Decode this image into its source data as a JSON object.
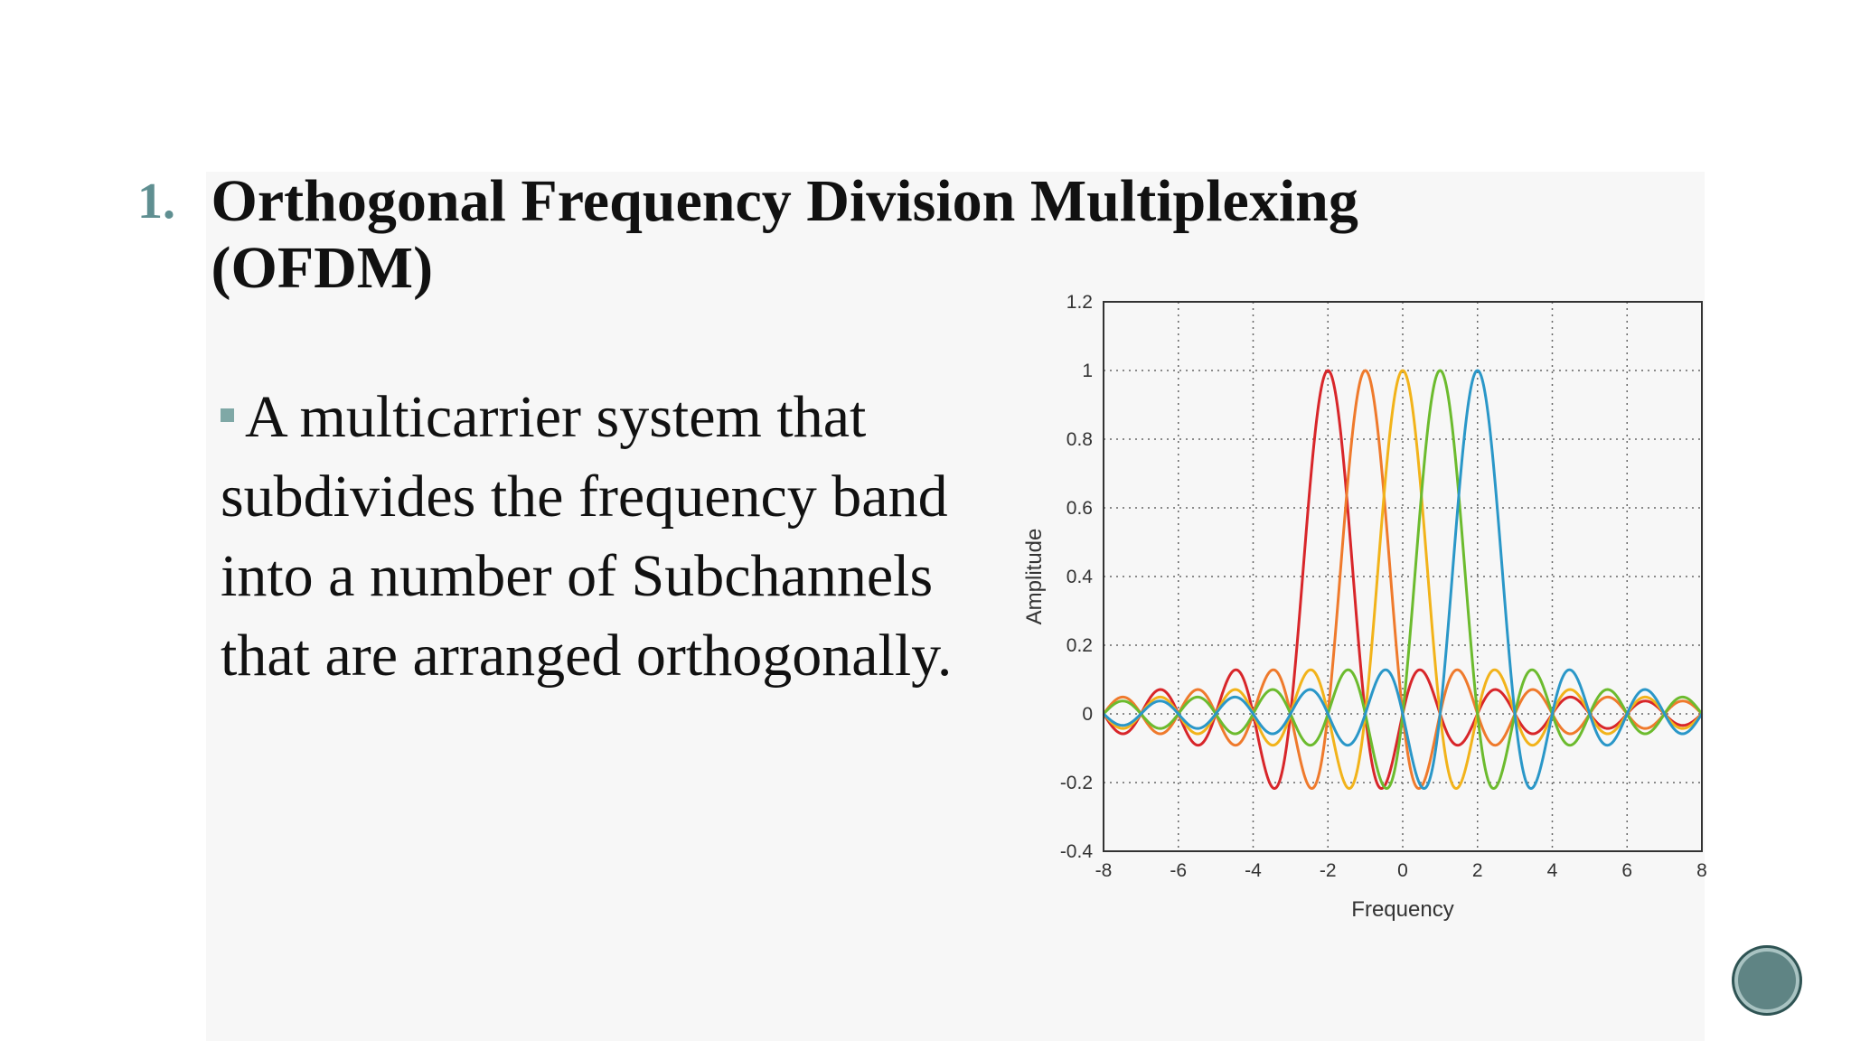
{
  "slide": {
    "number": "1.",
    "title": "Orthogonal Frequency Division Multiplexing (OFDM)",
    "bullet": "A multicarrier system that subdivides the frequency band into a number of Subchannels that are arranged orthogonally."
  },
  "chart_data": {
    "type": "line",
    "title": "",
    "xlabel": "Frequency",
    "ylabel": "Amplitude",
    "xlim": [
      -8,
      8
    ],
    "ylim": [
      -0.4,
      1.2
    ],
    "xticks": [
      "-8",
      "-6",
      "-4",
      "-2",
      "0",
      "2",
      "4",
      "6",
      "8"
    ],
    "yticks": [
      "-0.4",
      "-0.2",
      "0",
      "0.2",
      "0.4",
      "0.6",
      "0.8",
      "1",
      "1.2"
    ],
    "grid": "dotted",
    "function": "sinc(f - center)",
    "series": [
      {
        "center": -2,
        "color": "#d8262a"
      },
      {
        "center": -1,
        "color": "#ef7a2c"
      },
      {
        "center": 0,
        "color": "#f2b31a"
      },
      {
        "center": 1,
        "color": "#6cbb2e"
      },
      {
        "center": 2,
        "color": "#2a97c8"
      }
    ]
  }
}
